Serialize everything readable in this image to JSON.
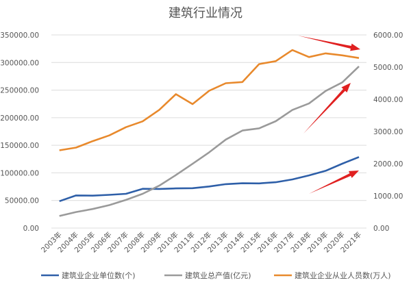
{
  "chart_data": {
    "type": "line",
    "title": "建筑行业情况",
    "categories": [
      "2003年",
      "2004年",
      "2005年",
      "2006年",
      "2007年",
      "2008年",
      "2009年",
      "2010年",
      "2011年",
      "2012年",
      "2013年",
      "2014年",
      "2015年",
      "2016年",
      "2017年",
      "2018年",
      "2019年",
      "2020年",
      "2021年"
    ],
    "y_left": {
      "range": [
        0,
        350000
      ],
      "ticks": [
        "0.00",
        "50000.00",
        "100000.00",
        "150000.00",
        "200000.00",
        "250000.00",
        "300000.00",
        "350000.00"
      ]
    },
    "y_right": {
      "range": [
        0,
        6000
      ],
      "ticks": [
        "0.00",
        "1000.00",
        "2000.00",
        "3000.00",
        "4000.00",
        "5000.00",
        "6000.00"
      ]
    },
    "grid": true,
    "legend_position": "bottom",
    "series": [
      {
        "name": "建筑业企业单位数(个)",
        "axis": "left",
        "color": "#2e5fa8",
        "values": [
          48688,
          59018,
          58750,
          60166,
          62074,
          71095,
          70817,
          71863,
          72280,
          75280,
          79528,
          81141,
          80911,
          83017,
          88074,
          95400,
          103814,
          116716,
          128746
        ]
      },
      {
        "name": "建筑业总产值(亿元)",
        "axis": "left",
        "color": "#9a9a9a",
        "values": [
          21865,
          29021,
          34552,
          41557,
          51044,
          62037,
          76808,
          96031,
          116463,
          137218,
          160366,
          176713,
          180757,
          193567,
          213944,
          225817,
          248446,
          263947,
          293079
        ]
      },
      {
        "name": "建筑业企业从业人员数(万人)",
        "axis": "right",
        "color": "#e8892c",
        "values": [
          2414,
          2500,
          2700,
          2878,
          3133,
          3315,
          3673,
          4160,
          3852,
          4267,
          4499,
          4537,
          5094,
          5185,
          5529,
          5313,
          5427,
          5367,
          5283
        ]
      }
    ],
    "annotation_color": "#e02020"
  }
}
